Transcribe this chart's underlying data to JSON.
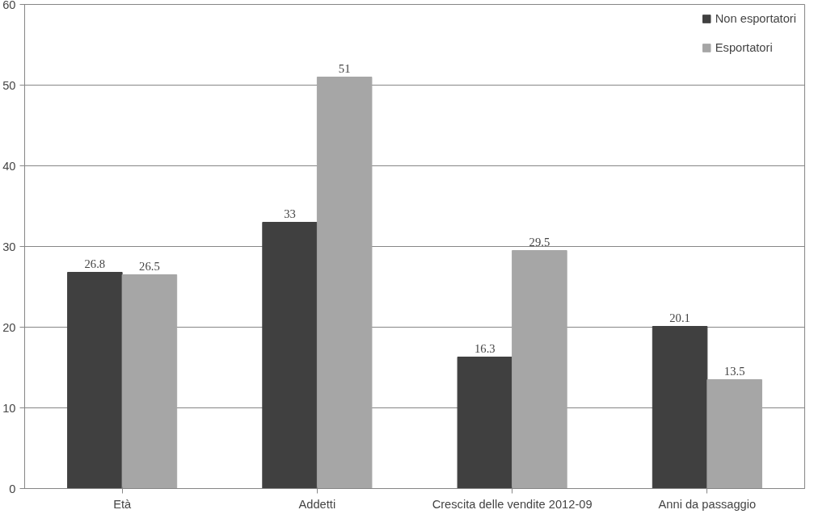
{
  "chart_data": {
    "type": "bar",
    "categories": [
      "Età",
      "Addetti",
      "Crescita delle vendite 2012-09",
      "Anni da passaggio"
    ],
    "series": [
      {
        "name": "Non esportatori",
        "color": "#404040",
        "values": [
          26.8,
          33,
          16.3,
          20.1
        ]
      },
      {
        "name": "Esportatori",
        "color": "#a6a6a6",
        "values": [
          26.5,
          51,
          29.5,
          13.5
        ]
      }
    ],
    "ylim": [
      0,
      60
    ],
    "yticks": [
      0,
      10,
      20,
      30,
      40,
      50,
      60
    ],
    "grid": "y",
    "legend": "top right",
    "data_labels": true
  }
}
